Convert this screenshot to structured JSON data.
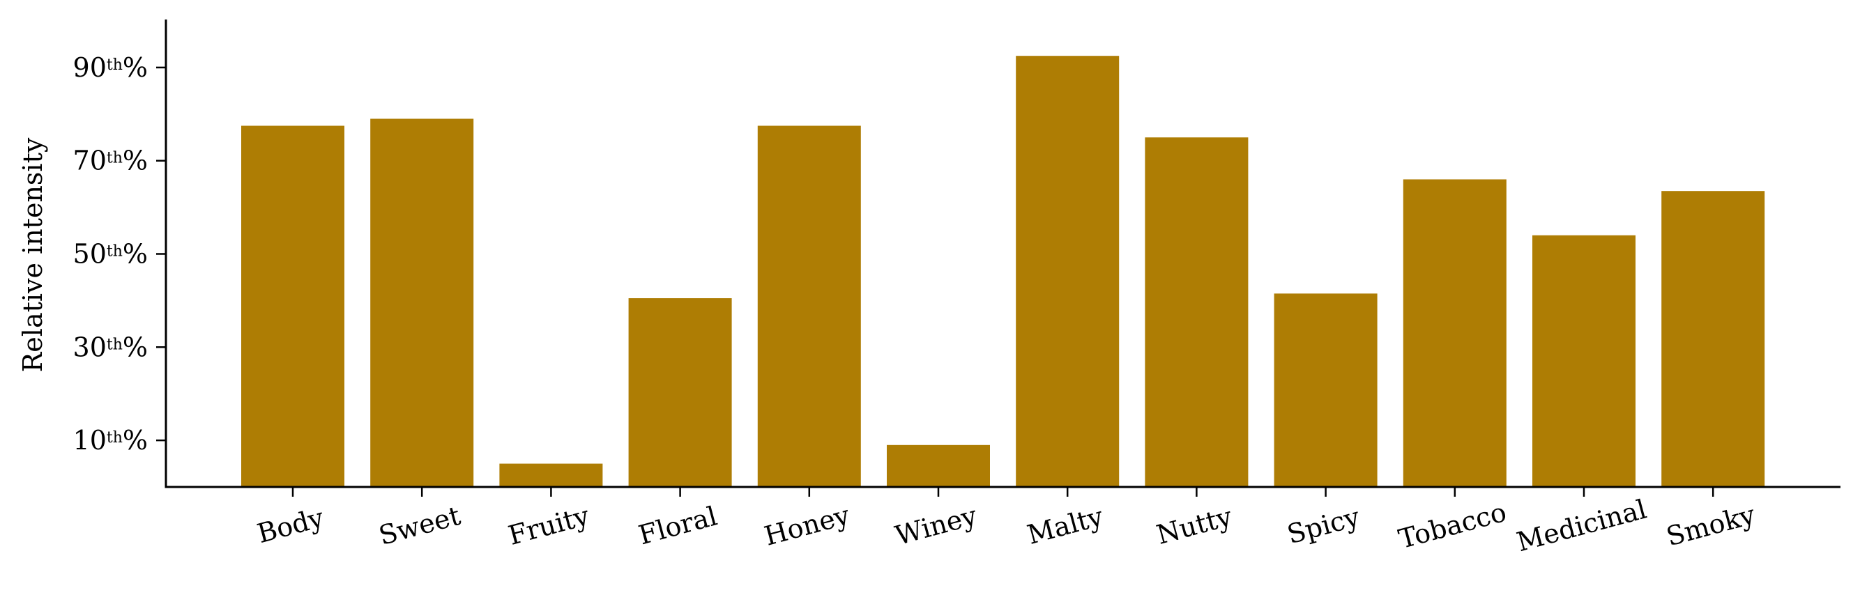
{
  "chart_data": {
    "type": "bar",
    "categories": [
      "Body",
      "Sweet",
      "Fruity",
      "Floral",
      "Honey",
      "Winey",
      "Malty",
      "Nutty",
      "Spicy",
      "Tobacco",
      "Medicinal",
      "Smoky"
    ],
    "values": [
      77.5,
      79,
      5,
      40.5,
      77.5,
      9,
      92.5,
      75,
      41.5,
      66,
      54,
      63.5
    ],
    "ylabel": "Relative intensity",
    "ylim": [
      0,
      100
    ],
    "yticks": [
      10,
      30,
      50,
      70,
      90
    ],
    "ytick_labels": [
      {
        "num": "10",
        "sup": "th",
        "suffix": "%"
      },
      {
        "num": "30",
        "sup": "th",
        "suffix": "%"
      },
      {
        "num": "50",
        "sup": "th",
        "suffix": "%"
      },
      {
        "num": "70",
        "sup": "th",
        "suffix": "%"
      },
      {
        "num": "90",
        "sup": "th",
        "suffix": "%"
      }
    ],
    "bar_color": "#ae7d04",
    "grid": false
  }
}
